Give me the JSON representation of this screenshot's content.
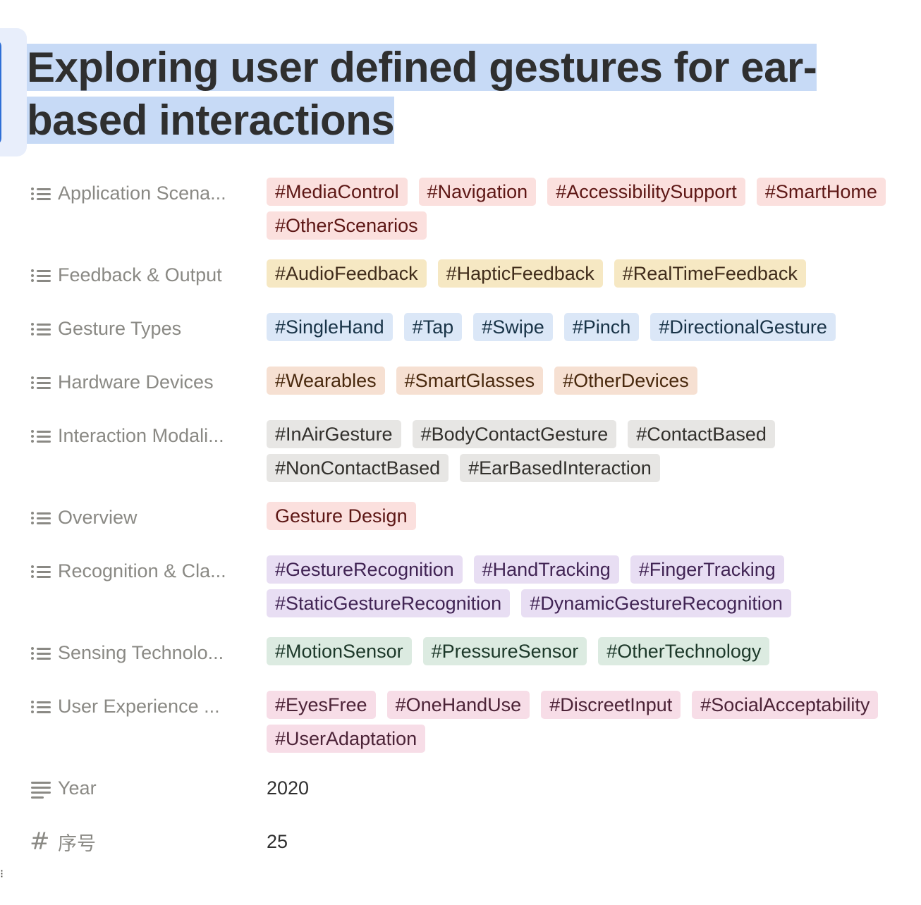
{
  "title": "Exploring user defined gestures for ear-based interactions",
  "colors": {
    "red_bg": "#fbe0de",
    "red_fg": "#5d1715",
    "yellow_bg": "#f6e8c3",
    "yellow_fg": "#402c1b",
    "blue_bg": "#dbe7f7",
    "blue_fg": "#183347",
    "orange_bg": "#f6e0d2",
    "orange_fg": "#49290e",
    "gray_bg": "#e7e6e4",
    "gray_fg": "#32302c",
    "purple_bg": "#e8def3",
    "purple_fg": "#412454",
    "green_bg": "#dcebe1",
    "green_fg": "#1c3829",
    "pink_bg": "#f7dde7",
    "pink_fg": "#4c2337"
  },
  "properties": [
    {
      "label": "Application Scena...",
      "icon": "list-icon",
      "color": "red",
      "tags": [
        "#MediaControl",
        "#Navigation",
        "#AccessibilitySupport",
        "#SmartHome",
        "#OtherScenarios"
      ]
    },
    {
      "label": "Feedback & Output",
      "icon": "list-icon",
      "color": "yellow",
      "tags": [
        "#AudioFeedback",
        "#HapticFeedback",
        "#RealTimeFeedback"
      ]
    },
    {
      "label": "Gesture Types",
      "icon": "list-icon",
      "color": "blue",
      "tags": [
        "#SingleHand",
        "#Tap",
        "#Swipe",
        "#Pinch",
        "#DirectionalGesture"
      ]
    },
    {
      "label": "Hardware Devices",
      "icon": "list-icon",
      "color": "orange",
      "tags": [
        "#Wearables",
        "#SmartGlasses",
        "#OtherDevices"
      ]
    },
    {
      "label": "Interaction Modali...",
      "icon": "list-icon",
      "color": "gray",
      "tags": [
        "#InAirGesture",
        "#BodyContactGesture",
        "#ContactBased",
        "#NonContactBased",
        "#EarBasedInteraction"
      ]
    },
    {
      "label": "Overview",
      "icon": "list-icon",
      "color": "red",
      "tags": [
        "Gesture Design"
      ]
    },
    {
      "label": "Recognition & Cla...",
      "icon": "list-icon",
      "color": "purple",
      "tags": [
        "#GestureRecognition",
        "#HandTracking",
        "#FingerTracking",
        "#StaticGestureRecognition",
        "#DynamicGestureRecognition"
      ]
    },
    {
      "label": "Sensing Technolo...",
      "icon": "list-icon",
      "color": "green",
      "tags": [
        "#MotionSensor",
        "#PressureSensor",
        "#OtherTechnology"
      ]
    },
    {
      "label": "User Experience ...",
      "icon": "list-icon",
      "color": "pink",
      "tags": [
        "#EyesFree",
        "#OneHandUse",
        "#DiscreetInput",
        "#SocialAcceptability",
        "#UserAdaptation"
      ]
    },
    {
      "label": "Year",
      "icon": "text-icon",
      "value": "2020"
    },
    {
      "label": "序号",
      "icon": "hash-icon",
      "value": "25"
    }
  ]
}
